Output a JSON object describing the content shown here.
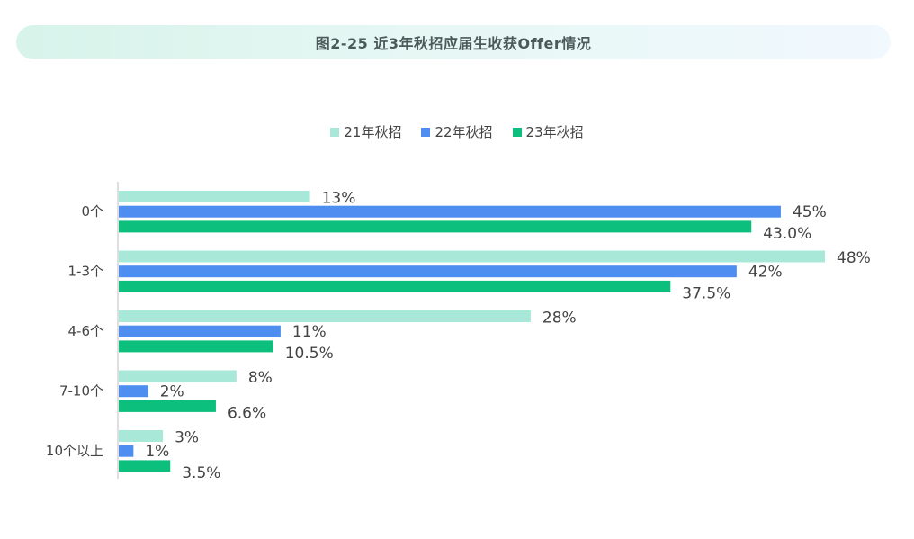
{
  "chart_data": {
    "type": "bar",
    "orientation": "horizontal",
    "title": "图2-25 近3年秋招应届生收获Offer情况",
    "categories": [
      "0个",
      "1-3个",
      "4-6个",
      "7-10个",
      "10个以上"
    ],
    "series": [
      {
        "name": "21年秋招",
        "color": "#a8e8d8",
        "values": [
          13,
          48,
          28,
          8,
          3
        ],
        "labels": [
          "13%",
          "48%",
          "28%",
          "8%",
          "3%"
        ]
      },
      {
        "name": "22年秋招",
        "color": "#4d8ef0",
        "values": [
          45,
          42,
          11,
          2,
          1
        ],
        "labels": [
          "45%",
          "42%",
          "11%",
          "2%",
          "1%"
        ]
      },
      {
        "name": "23年秋招",
        "color": "#0cbf7d",
        "values": [
          43.0,
          37.5,
          10.5,
          6.6,
          3.5
        ],
        "labels": [
          "43.0%",
          "37.5%",
          "10.5%",
          "6.6%",
          "3.5%"
        ]
      }
    ],
    "xlim": [
      0,
      48
    ],
    "legend_position": "top"
  }
}
